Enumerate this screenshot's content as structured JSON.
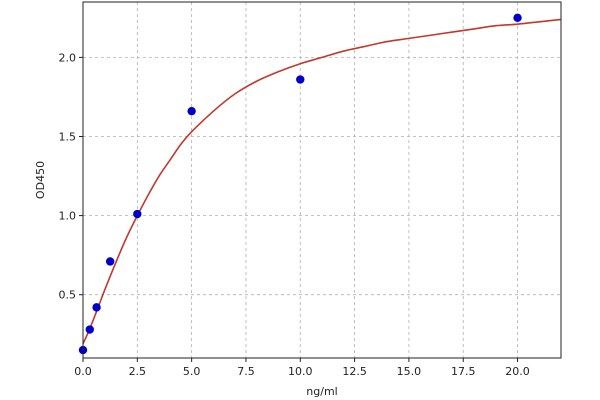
{
  "chart_data": {
    "type": "scatter",
    "title": "",
    "xlabel": "ng/ml",
    "ylabel": "OD450",
    "xlim": [
      0,
      22
    ],
    "ylim": [
      0.1,
      2.35
    ],
    "xticks": [
      0.0,
      2.5,
      5.0,
      7.5,
      10.0,
      12.5,
      15.0,
      17.5,
      20.0
    ],
    "xtick_labels": [
      "0.0",
      "2.5",
      "5.0",
      "7.5",
      "10.0",
      "12.5",
      "15.0",
      "17.5",
      "20.0"
    ],
    "yticks": [
      0.5,
      1.0,
      1.5,
      2.0
    ],
    "ytick_labels": [
      "0.5",
      "1.0",
      "1.5",
      "2.0"
    ],
    "grid": true,
    "point_color": "#0000cc",
    "curve_color": "#c0392b",
    "series": [
      {
        "x": [
          0,
          0.3125,
          0.625,
          1.25,
          2.5,
          5,
          10,
          20
        ],
        "y": [
          0.15,
          0.28,
          0.42,
          0.71,
          1.01,
          1.66,
          1.86,
          2.25
        ]
      }
    ],
    "fit_curve": {
      "x": [
        0,
        0.25,
        0.5,
        0.75,
        1,
        1.5,
        2,
        2.5,
        3,
        3.5,
        4,
        4.5,
        5,
        6,
        7,
        8,
        9,
        10,
        11,
        12,
        13,
        14,
        15,
        16,
        17,
        18,
        19,
        20,
        21,
        22
      ],
      "y": [
        0.19,
        0.265,
        0.35,
        0.44,
        0.53,
        0.7,
        0.86,
        1.0,
        1.13,
        1.25,
        1.35,
        1.45,
        1.53,
        1.66,
        1.77,
        1.85,
        1.91,
        1.96,
        2.0,
        2.04,
        2.07,
        2.1,
        2.12,
        2.14,
        2.16,
        2.18,
        2.2,
        2.21,
        2.225,
        2.24
      ]
    }
  }
}
